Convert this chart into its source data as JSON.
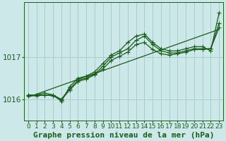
{
  "title": "Graphe pression niveau de la mer (hPa)",
  "background_color": "#cce8e8",
  "grid_color": "#aacccc",
  "line_color": "#1a5c1a",
  "x_ticks": [
    0,
    1,
    2,
    3,
    4,
    5,
    6,
    7,
    8,
    9,
    10,
    11,
    12,
    13,
    14,
    15,
    16,
    17,
    18,
    19,
    20,
    21,
    22,
    23
  ],
  "xlim": [
    -0.5,
    23.5
  ],
  "ylim": [
    1015.5,
    1018.3
  ],
  "y_ticks": [
    1016,
    1017
  ],
  "series_main": [
    1016.1,
    1016.1,
    1016.15,
    1016.1,
    1015.95,
    1016.3,
    1016.5,
    1016.55,
    1016.65,
    1016.85,
    1017.05,
    1017.15,
    1017.35,
    1017.5,
    1017.55,
    1017.35,
    1017.2,
    1017.15,
    1017.15,
    1017.2,
    1017.25,
    1017.25,
    1017.15,
    1018.05
  ],
  "series_smooth": [
    1016.1,
    1016.1,
    1016.1,
    1016.1,
    1016.0,
    1016.25,
    1016.45,
    1016.5,
    1016.6,
    1016.78,
    1017.0,
    1017.1,
    1017.2,
    1017.4,
    1017.5,
    1017.3,
    1017.15,
    1017.1,
    1017.1,
    1017.15,
    1017.2,
    1017.2,
    1017.2,
    1017.8
  ],
  "series_med1": [
    1016.08,
    1016.08,
    1016.1,
    1016.08,
    1015.98,
    1016.22,
    1016.42,
    1016.48,
    1016.58,
    1016.72,
    1016.92,
    1017.02,
    1017.12,
    1017.3,
    1017.35,
    1017.18,
    1017.08,
    1017.05,
    1017.08,
    1017.12,
    1017.18,
    1017.18,
    1017.2,
    1017.7
  ],
  "series_trend": [
    1016.05,
    1016.12,
    1016.19,
    1016.26,
    1016.33,
    1016.4,
    1016.47,
    1016.54,
    1016.61,
    1016.68,
    1016.75,
    1016.82,
    1016.89,
    1016.96,
    1017.03,
    1017.1,
    1017.17,
    1017.24,
    1017.31,
    1017.38,
    1017.45,
    1017.52,
    1017.59,
    1017.66
  ],
  "marker": "+",
  "markersize": 4,
  "linewidth": 0.9,
  "title_fontsize": 8,
  "tick_fontsize": 6.5
}
